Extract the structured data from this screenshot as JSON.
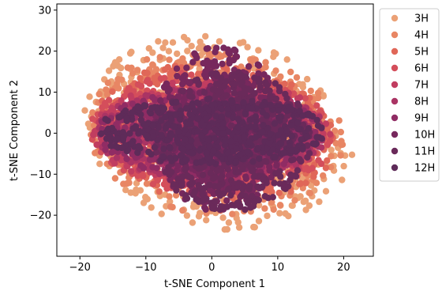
{
  "chart_data": {
    "type": "scatter",
    "title": "",
    "xlabel": "t-SNE Component 1",
    "ylabel": "t-SNE Component 2",
    "xlim": [
      -23.5,
      24.5
    ],
    "ylim": [
      -30,
      31.5
    ],
    "xticks": [
      -20,
      -10,
      0,
      10,
      20
    ],
    "xtick_labels": [
      "−20",
      "−10",
      "0",
      "10",
      "20"
    ],
    "yticks": [
      -20,
      -10,
      0,
      10,
      20,
      30
    ],
    "ytick_labels": [
      "−20",
      "−10",
      "0",
      "10",
      "20",
      "30"
    ],
    "grid": false,
    "legend_position": "right, outside plot area, top-aligned",
    "series": [
      {
        "name": "3H",
        "color": "#eba176",
        "cx": 1.0,
        "cy": 0.0,
        "rx": 20.5,
        "ry": 23.5,
        "tilt": -0.15
      },
      {
        "name": "4H",
        "color": "#e88664",
        "cx": 0.5,
        "cy": 0.0,
        "rx": 19.5,
        "ry": 20.0,
        "tilt": -0.1
      },
      {
        "name": "5H",
        "color": "#e06758",
        "cx": 0.5,
        "cy": 0.0,
        "rx": 18.5,
        "ry": 17.0,
        "tilt": -0.1
      },
      {
        "name": "6H",
        "color": "#d44e5b",
        "cx": 0.0,
        "cy": 0.0,
        "rx": 18.5,
        "ry": 15.0,
        "tilt": -0.05
      },
      {
        "name": "7H",
        "color": "#c13d60",
        "cx": 0.0,
        "cy": 0.0,
        "rx": 18.0,
        "ry": 13.0,
        "tilt": 0.0
      },
      {
        "name": "8H",
        "color": "#aa3464",
        "cx": 0.0,
        "cy": 0.0,
        "rx": 17.5,
        "ry": 11.5,
        "tilt": 0.0
      },
      {
        "name": "9H",
        "color": "#902c64",
        "cx": -0.5,
        "cy": 0.0,
        "rx": 17.0,
        "ry": 10.5,
        "tilt": 0.0
      },
      {
        "name": "10H",
        "color": "#77285d",
        "cx": 1.0,
        "cy": 1.0,
        "rx": 10.0,
        "ry": 20.0,
        "tilt": 0.0
      },
      {
        "name": "11H",
        "color": "#6a2a5a",
        "cx": 3.0,
        "cy": -2.0,
        "rx": 12.0,
        "ry": 17.0,
        "tilt": 0.0
      },
      {
        "name": "12H",
        "color": "#5e2b59",
        "cx": 0.0,
        "cy": 0.5,
        "rx": 17.5,
        "ry": 8.0,
        "tilt": 0.0
      }
    ]
  }
}
